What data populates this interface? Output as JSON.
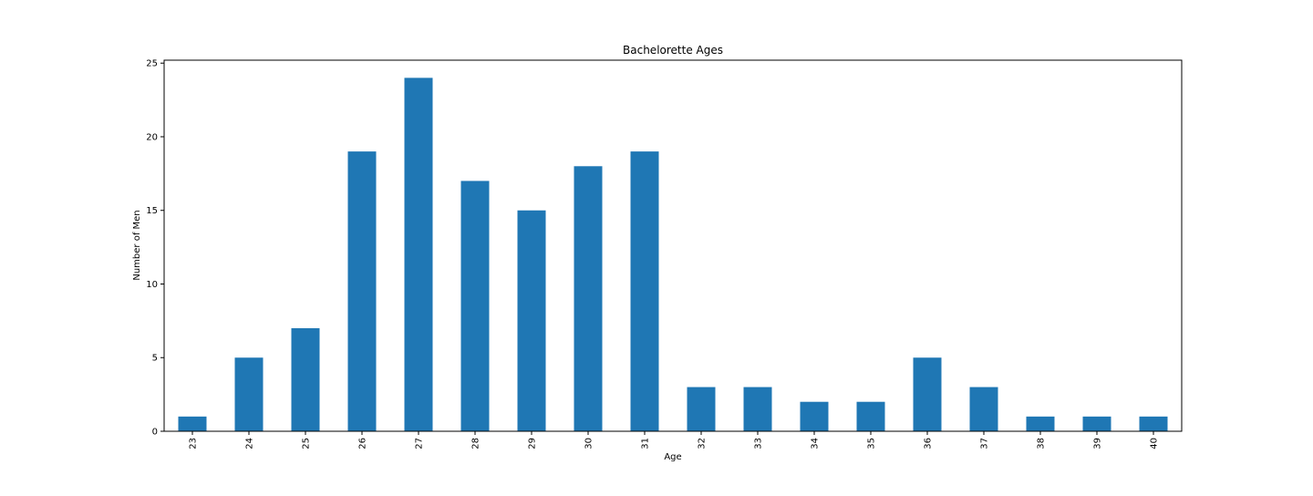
{
  "chart_data": {
    "type": "bar",
    "title": "Bachelorette Ages",
    "xlabel": "Age",
    "ylabel": "Number of Men",
    "categories": [
      "23",
      "24",
      "25",
      "26",
      "27",
      "28",
      "29",
      "30",
      "31",
      "32",
      "33",
      "34",
      "35",
      "36",
      "37",
      "38",
      "39",
      "40"
    ],
    "values": [
      1,
      5,
      7,
      19,
      24,
      17,
      15,
      18,
      19,
      3,
      3,
      2,
      2,
      5,
      3,
      1,
      1,
      1
    ],
    "ylim": [
      0,
      25.2
    ],
    "yticks": [
      0,
      5,
      10,
      15,
      20,
      25
    ],
    "bar_color": "#1f77b4",
    "grid": false,
    "legend": "none"
  }
}
